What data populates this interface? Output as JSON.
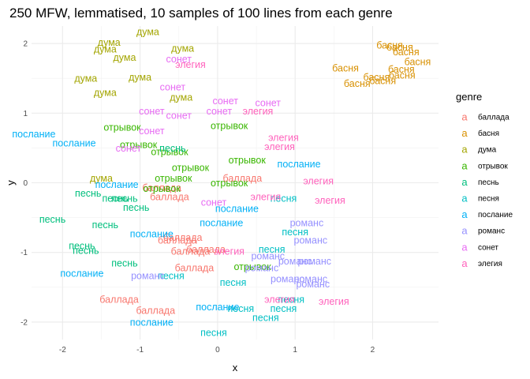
{
  "chart_data": {
    "type": "scatter",
    "title": "250 MFW, lemmatised, 10 samples of 100 lines from each genre",
    "xlabel": "x",
    "ylabel": "y",
    "xlim": [
      -2.4,
      2.85
    ],
    "ylim": [
      -2.25,
      2.25
    ],
    "xticks": [
      -2,
      -1,
      0,
      1,
      2
    ],
    "yticks": [
      -2,
      -1,
      0,
      1,
      2
    ],
    "grid": true,
    "legend": {
      "title": "genre",
      "position": "right",
      "key_glyph": "a",
      "entries": [
        {
          "label": "баллада",
          "color": "#F8766D"
        },
        {
          "label": "басня",
          "color": "#D89000"
        },
        {
          "label": "дума",
          "color": "#A3A500"
        },
        {
          "label": "отрывок",
          "color": "#39B600"
        },
        {
          "label": "песнь",
          "color": "#00BF7D"
        },
        {
          "label": "песня",
          "color": "#00BFC4"
        },
        {
          "label": "послание",
          "color": "#00B0F6"
        },
        {
          "label": "романс",
          "color": "#9590FF"
        },
        {
          "label": "сонет",
          "color": "#E76BF3"
        },
        {
          "label": "элегия",
          "color": "#FF62BC"
        }
      ]
    },
    "series": [
      {
        "name": "баллада",
        "color": "#F8766D",
        "points": [
          {
            "x": 0.32,
            "y": 0.07,
            "label": "баллада"
          },
          {
            "x": -0.72,
            "y": -0.07,
            "label": "баллада"
          },
          {
            "x": -0.62,
            "y": -0.2,
            "label": "баллада"
          },
          {
            "x": -0.45,
            "y": -0.78,
            "label": "баллада"
          },
          {
            "x": -0.52,
            "y": -0.82,
            "label": "баллада"
          },
          {
            "x": -0.15,
            "y": -0.95,
            "label": "баллада"
          },
          {
            "x": -0.35,
            "y": -0.98,
            "label": "баллада"
          },
          {
            "x": -0.3,
            "y": -1.22,
            "label": "баллада"
          },
          {
            "x": -1.27,
            "y": -1.67,
            "label": "баллада"
          },
          {
            "x": -0.8,
            "y": -1.83,
            "label": "баллада"
          }
        ]
      },
      {
        "name": "басня",
        "color": "#D89000",
        "points": [
          {
            "x": 2.22,
            "y": 1.98,
            "label": "басня"
          },
          {
            "x": 2.35,
            "y": 1.95,
            "label": "басня"
          },
          {
            "x": 2.43,
            "y": 1.88,
            "label": "басня"
          },
          {
            "x": 2.58,
            "y": 1.74,
            "label": "басня"
          },
          {
            "x": 1.65,
            "y": 1.65,
            "label": "басня"
          },
          {
            "x": 2.37,
            "y": 1.63,
            "label": "басня"
          },
          {
            "x": 2.38,
            "y": 1.55,
            "label": "басня"
          },
          {
            "x": 2.05,
            "y": 1.52,
            "label": "басня"
          },
          {
            "x": 2.13,
            "y": 1.47,
            "label": "басня"
          },
          {
            "x": 1.8,
            "y": 1.43,
            "label": "басня"
          }
        ]
      },
      {
        "name": "дума",
        "color": "#A3A500",
        "points": [
          {
            "x": -0.9,
            "y": 2.17,
            "label": "дума"
          },
          {
            "x": -1.4,
            "y": 2.02,
            "label": "дума"
          },
          {
            "x": -0.45,
            "y": 1.93,
            "label": "дума"
          },
          {
            "x": -1.45,
            "y": 1.92,
            "label": "дума"
          },
          {
            "x": -1.2,
            "y": 1.8,
            "label": "дума"
          },
          {
            "x": -1.7,
            "y": 1.5,
            "label": "дума"
          },
          {
            "x": -1.0,
            "y": 1.52,
            "label": "дума"
          },
          {
            "x": -1.45,
            "y": 1.3,
            "label": "дума"
          },
          {
            "x": -0.47,
            "y": 1.23,
            "label": "дума"
          },
          {
            "x": -1.5,
            "y": 0.07,
            "label": "дума"
          }
        ]
      },
      {
        "name": "отрывок",
        "color": "#39B600",
        "points": [
          {
            "x": -1.23,
            "y": 0.8,
            "label": "отрывок"
          },
          {
            "x": 0.15,
            "y": 0.82,
            "label": "отрывок"
          },
          {
            "x": -1.02,
            "y": 0.55,
            "label": "отрывок"
          },
          {
            "x": -0.62,
            "y": 0.45,
            "label": "отрывок"
          },
          {
            "x": 0.38,
            "y": 0.33,
            "label": "отрывок"
          },
          {
            "x": -0.35,
            "y": 0.22,
            "label": "отрывок"
          },
          {
            "x": -0.57,
            "y": 0.07,
            "label": "отрывок"
          },
          {
            "x": -0.72,
            "y": -0.08,
            "label": "отрывок"
          },
          {
            "x": 0.15,
            "y": 0.0,
            "label": "отрывок"
          },
          {
            "x": 0.45,
            "y": -1.2,
            "label": "отрывок"
          }
        ]
      },
      {
        "name": "песнь",
        "color": "#00BF7D",
        "points": [
          {
            "x": -0.58,
            "y": 0.5,
            "label": "песнь"
          },
          {
            "x": -1.67,
            "y": -0.15,
            "label": "песнь"
          },
          {
            "x": -1.32,
            "y": -0.22,
            "label": "песнь"
          },
          {
            "x": -1.05,
            "y": -0.35,
            "label": "песнь"
          },
          {
            "x": -1.2,
            "y": -0.22,
            "label": "песнь"
          },
          {
            "x": -2.13,
            "y": -0.52,
            "label": "песнь"
          },
          {
            "x": -1.45,
            "y": -0.6,
            "label": "песнь"
          },
          {
            "x": -1.75,
            "y": -0.9,
            "label": "песнь"
          },
          {
            "x": -1.7,
            "y": -0.97,
            "label": "песнь"
          },
          {
            "x": -1.2,
            "y": -1.15,
            "label": "песнь"
          }
        ]
      },
      {
        "name": "песня",
        "color": "#00BFC4",
        "points": [
          {
            "x": 0.85,
            "y": -0.22,
            "label": "песня"
          },
          {
            "x": 1.0,
            "y": -0.7,
            "label": "песня"
          },
          {
            "x": 0.7,
            "y": -0.95,
            "label": "песня"
          },
          {
            "x": -0.6,
            "y": -1.33,
            "label": "песня"
          },
          {
            "x": 0.2,
            "y": -1.43,
            "label": "песня"
          },
          {
            "x": 0.95,
            "y": -1.67,
            "label": "песня"
          },
          {
            "x": 0.3,
            "y": -1.8,
            "label": "песня"
          },
          {
            "x": 0.85,
            "y": -1.8,
            "label": "песня"
          },
          {
            "x": 0.62,
            "y": -1.93,
            "label": "песня"
          },
          {
            "x": -0.05,
            "y": -2.15,
            "label": "песня"
          }
        ]
      },
      {
        "name": "послание",
        "color": "#00B0F6",
        "points": [
          {
            "x": -2.37,
            "y": 0.7,
            "label": "послание"
          },
          {
            "x": -1.85,
            "y": 0.57,
            "label": "послание"
          },
          {
            "x": 1.05,
            "y": 0.27,
            "label": "послание"
          },
          {
            "x": -1.3,
            "y": -0.02,
            "label": "послание"
          },
          {
            "x": 0.25,
            "y": -0.37,
            "label": "послание"
          },
          {
            "x": 0.05,
            "y": -0.57,
            "label": "послание"
          },
          {
            "x": -0.85,
            "y": -0.73,
            "label": "послание"
          },
          {
            "x": -1.75,
            "y": -1.3,
            "label": "послание"
          },
          {
            "x": 0.0,
            "y": -1.78,
            "label": "послание"
          },
          {
            "x": -0.85,
            "y": -2.0,
            "label": "послание"
          }
        ]
      },
      {
        "name": "романс",
        "color": "#9590FF",
        "points": [
          {
            "x": 1.15,
            "y": -0.57,
            "label": "романс"
          },
          {
            "x": 1.2,
            "y": -0.82,
            "label": "романс"
          },
          {
            "x": 0.65,
            "y": -1.05,
            "label": "романс"
          },
          {
            "x": 1.0,
            "y": -1.12,
            "label": "романс"
          },
          {
            "x": 1.25,
            "y": -1.12,
            "label": "романс"
          },
          {
            "x": 0.57,
            "y": -1.22,
            "label": "романс"
          },
          {
            "x": -0.9,
            "y": -1.33,
            "label": "романс"
          },
          {
            "x": 0.9,
            "y": -1.38,
            "label": "романс"
          },
          {
            "x": 1.2,
            "y": -1.38,
            "label": "романс"
          },
          {
            "x": 1.23,
            "y": -1.45,
            "label": "романс"
          }
        ]
      },
      {
        "name": "сонет",
        "color": "#E76BF3",
        "points": [
          {
            "x": -0.5,
            "y": 1.78,
            "label": "сонет"
          },
          {
            "x": -0.58,
            "y": 1.38,
            "label": "сонет"
          },
          {
            "x": 0.1,
            "y": 1.18,
            "label": "сонет"
          },
          {
            "x": -0.85,
            "y": 1.03,
            "label": "сонет"
          },
          {
            "x": 0.02,
            "y": 1.03,
            "label": "сонет"
          },
          {
            "x": 0.65,
            "y": 1.15,
            "label": "сонет"
          },
          {
            "x": -0.5,
            "y": 0.97,
            "label": "сонет"
          },
          {
            "x": -0.85,
            "y": 0.75,
            "label": "сонет"
          },
          {
            "x": -1.15,
            "y": 0.5,
            "label": "сонет"
          },
          {
            "x": -0.05,
            "y": -0.28,
            "label": "сонет"
          }
        ]
      },
      {
        "name": "элегия",
        "color": "#FF62BC",
        "points": [
          {
            "x": -0.35,
            "y": 1.7,
            "label": "элегия"
          },
          {
            "x": 0.52,
            "y": 1.03,
            "label": "элегия"
          },
          {
            "x": 0.85,
            "y": 0.65,
            "label": "элегия"
          },
          {
            "x": 0.8,
            "y": 0.52,
            "label": "элегия"
          },
          {
            "x": 1.3,
            "y": 0.03,
            "label": "элегия"
          },
          {
            "x": 0.62,
            "y": -0.2,
            "label": "элегия"
          },
          {
            "x": 1.45,
            "y": -0.25,
            "label": "элегия"
          },
          {
            "x": 0.15,
            "y": -0.98,
            "label": "элегия"
          },
          {
            "x": 0.8,
            "y": -1.67,
            "label": "элегия"
          },
          {
            "x": 1.5,
            "y": -1.7,
            "label": "элегия"
          }
        ]
      }
    ]
  }
}
